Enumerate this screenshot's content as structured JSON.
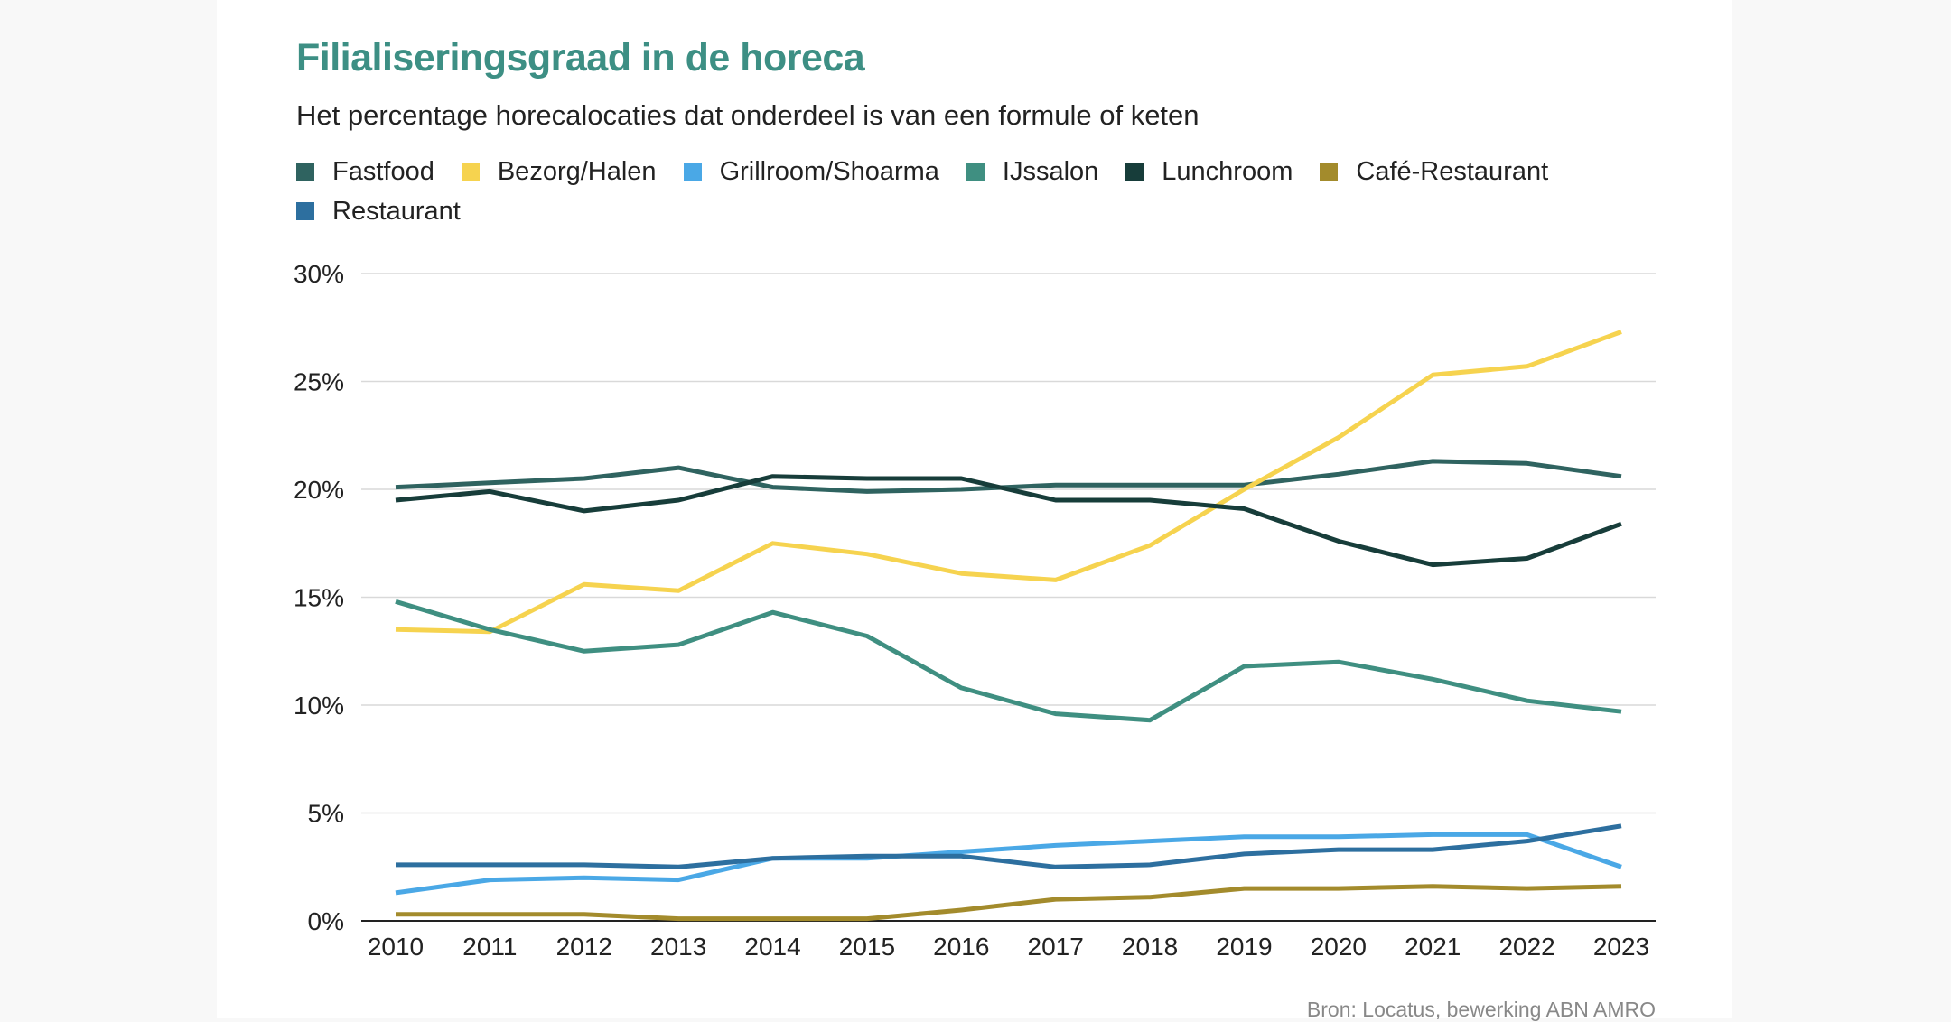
{
  "chart_data": {
    "type": "line",
    "title": "Filialiseringsgraad in de horeca",
    "subtitle": "Het percentage horecalocaties dat onderdeel is van een formule of keten",
    "source": "Bron: Locatus, bewerking ABN AMRO",
    "xlabel": "",
    "ylabel": "",
    "x": [
      "2010",
      "2011",
      "2012",
      "2013",
      "2014",
      "2015",
      "2016",
      "2017",
      "2018",
      "2019",
      "2020",
      "2021",
      "2022",
      "2023"
    ],
    "ylim": [
      0,
      30
    ],
    "yticks": [
      0,
      5,
      10,
      15,
      20,
      25,
      30
    ],
    "ytick_labels": [
      "0%",
      "5%",
      "10%",
      "15%",
      "20%",
      "25%",
      "30%"
    ],
    "grid": true,
    "legend_position": "top",
    "series": [
      {
        "name": "Fastfood",
        "color": "#2f6360",
        "values": [
          20.1,
          20.3,
          20.5,
          21.0,
          20.1,
          19.9,
          20.0,
          20.2,
          20.2,
          20.2,
          20.7,
          21.3,
          21.2,
          20.6
        ]
      },
      {
        "name": "Bezorg/Halen",
        "color": "#f6d34f",
        "values": [
          13.5,
          13.4,
          15.6,
          15.3,
          17.5,
          17.0,
          16.1,
          15.8,
          17.4,
          20.0,
          22.4,
          25.3,
          25.7,
          27.3
        ]
      },
      {
        "name": "Grillroom/Shoarma",
        "color": "#4aa8e6",
        "values": [
          1.3,
          1.9,
          2.0,
          1.9,
          2.9,
          2.9,
          3.2,
          3.5,
          3.7,
          3.9,
          3.9,
          4.0,
          4.0,
          2.5
        ]
      },
      {
        "name": "IJssalon",
        "color": "#3f8f81",
        "values": [
          14.8,
          13.5,
          12.5,
          12.8,
          14.3,
          13.2,
          10.8,
          9.6,
          9.3,
          11.8,
          12.0,
          11.2,
          10.2,
          9.7
        ]
      },
      {
        "name": "Lunchroom",
        "color": "#173d3a",
        "values": [
          19.5,
          19.9,
          19.0,
          19.5,
          20.6,
          20.5,
          20.5,
          19.5,
          19.5,
          19.1,
          17.6,
          16.5,
          16.8,
          18.4
        ]
      },
      {
        "name": "Café-Restaurant",
        "color": "#a38b2c",
        "values": [
          0.3,
          0.3,
          0.3,
          0.1,
          0.1,
          0.1,
          0.5,
          1.0,
          1.1,
          1.5,
          1.5,
          1.6,
          1.5,
          1.6
        ]
      },
      {
        "name": "Restaurant",
        "color": "#2d6f9f",
        "values": [
          2.6,
          2.6,
          2.6,
          2.5,
          2.9,
          3.0,
          3.0,
          2.5,
          2.6,
          3.1,
          3.3,
          3.3,
          3.7,
          4.4
        ]
      }
    ]
  }
}
